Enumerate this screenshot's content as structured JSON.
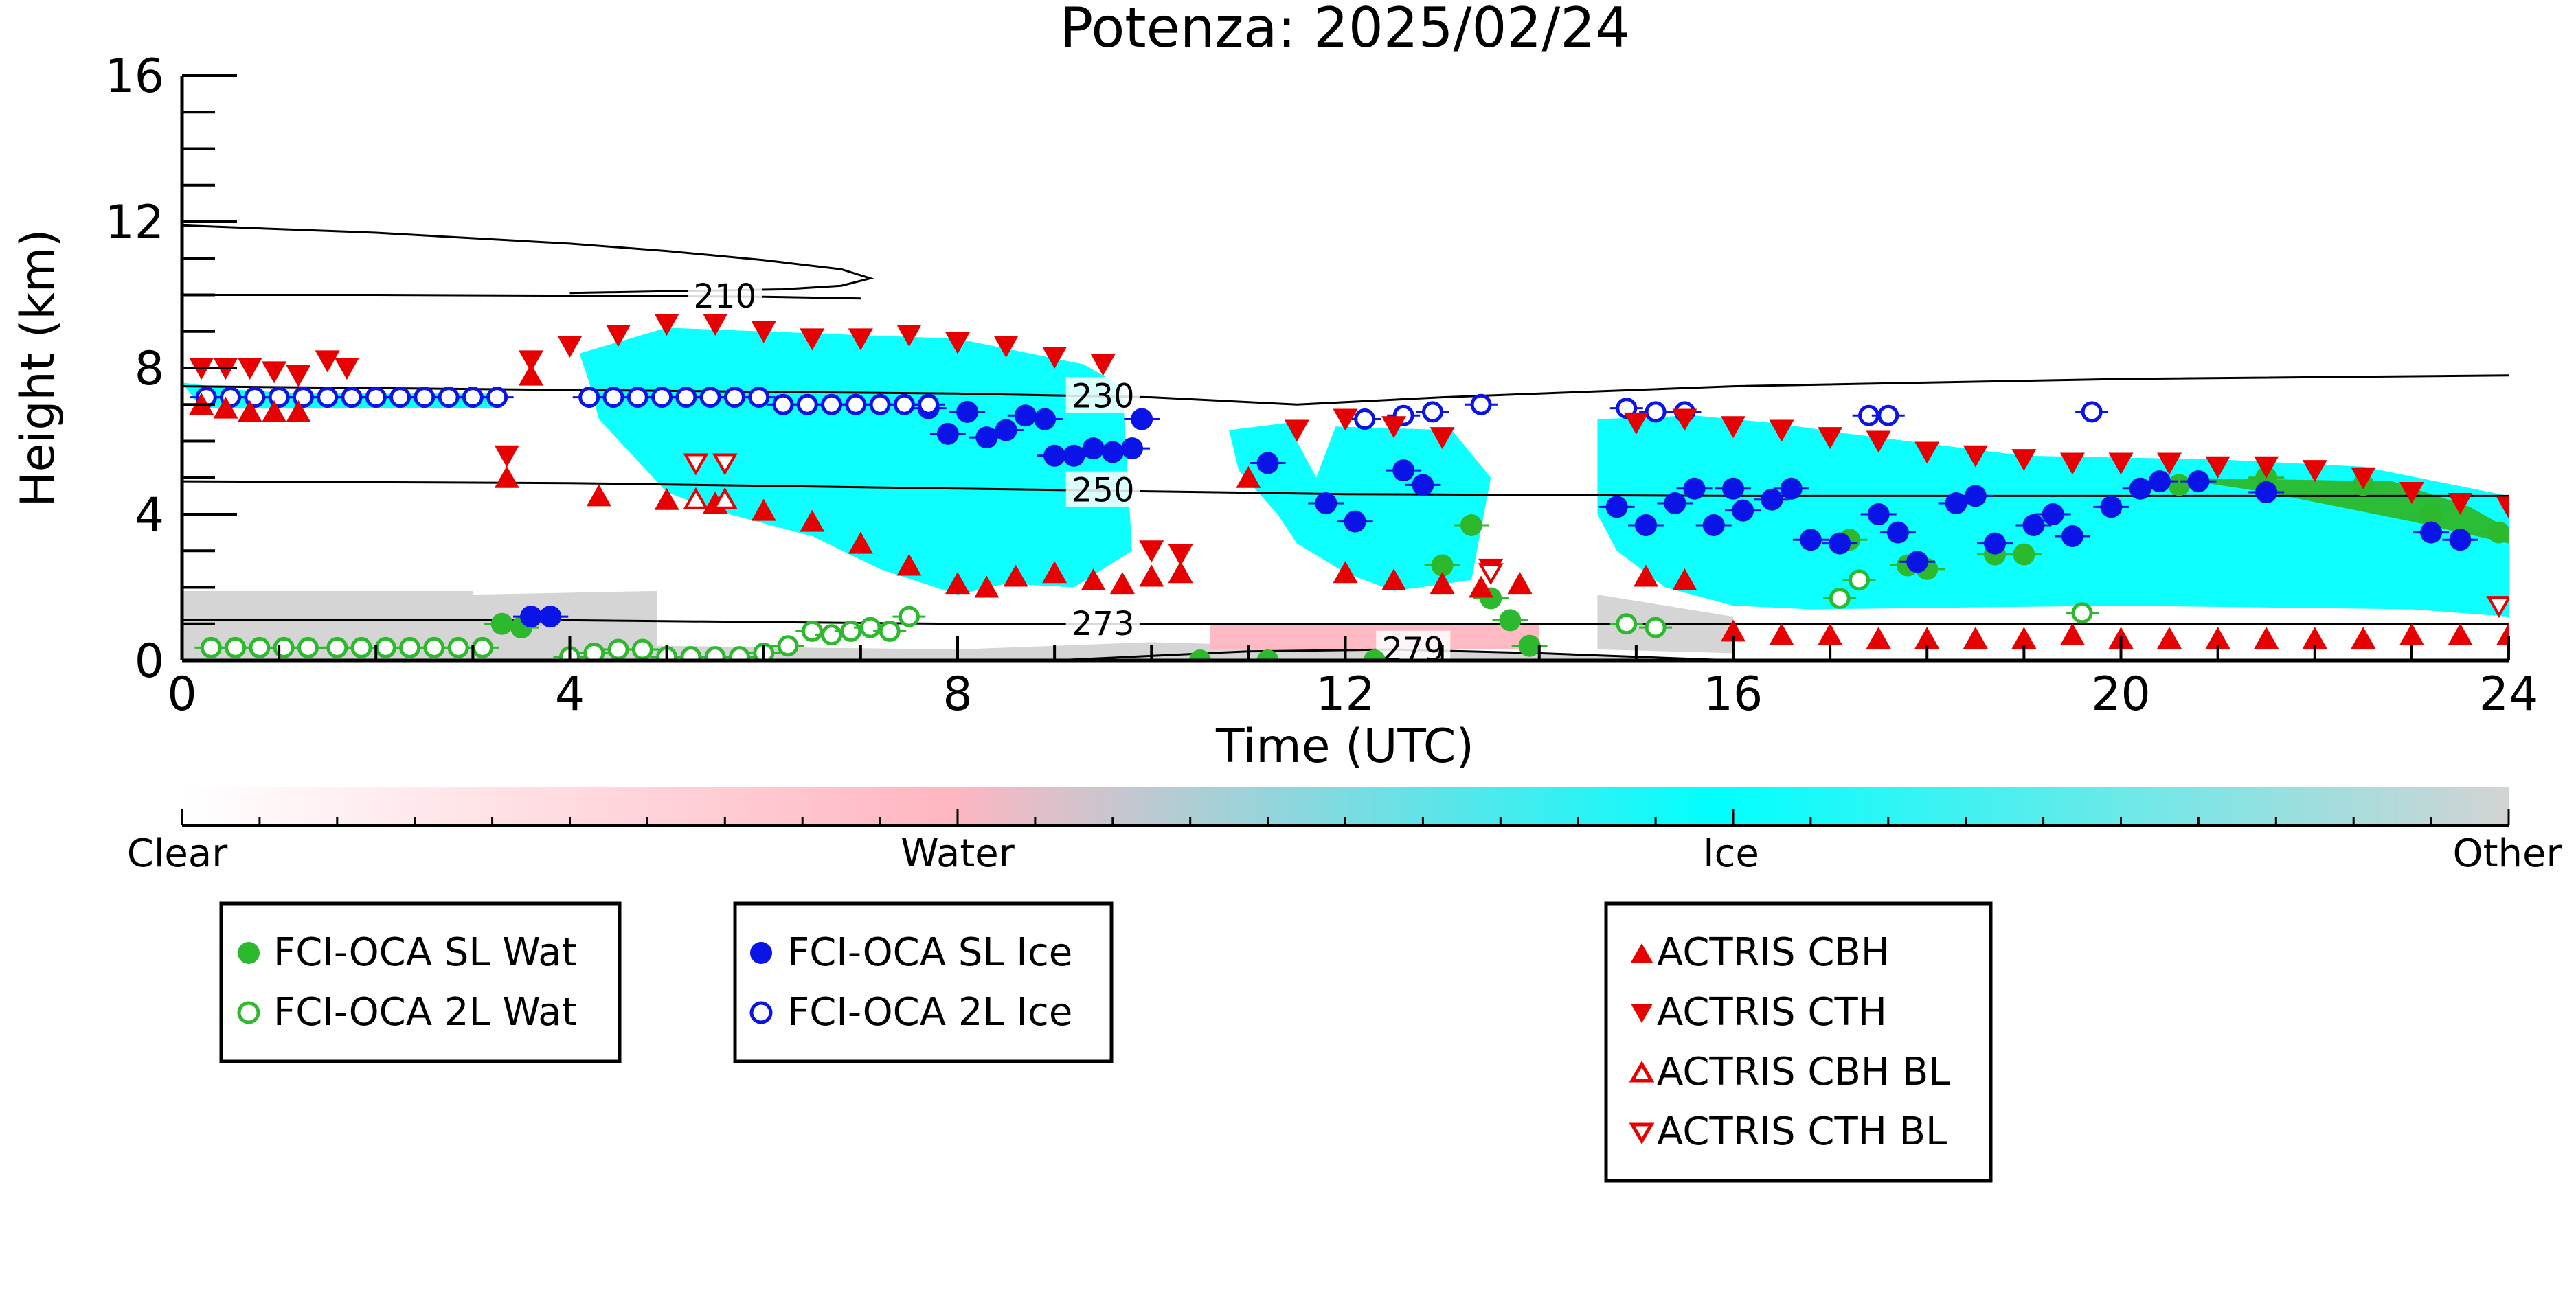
{
  "chart_data": {
    "type": "scatter",
    "title": "Potenza: 2025/02/24",
    "xlabel": "Time (UTC)",
    "ylabel": "Height (km)",
    "xlim": [
      0,
      24
    ],
    "ylim": [
      0,
      16
    ],
    "x_ticks": [
      0,
      4,
      8,
      12,
      16,
      20,
      24
    ],
    "y_ticks": [
      0,
      4,
      8,
      12,
      16
    ],
    "colorbar": {
      "labels": [
        "Clear",
        "Water",
        "Ice",
        "Other"
      ],
      "stops": [
        {
          "pos": 0.0,
          "color": "#ffffff"
        },
        {
          "pos": 0.33,
          "color": "#ffb6c1"
        },
        {
          "pos": 0.66,
          "color": "#00ffff"
        },
        {
          "pos": 1.0,
          "color": "#d3d3d3"
        }
      ]
    },
    "isotherms": [
      {
        "label": "210",
        "label_x": 5.6,
        "points": [
          [
            0,
            10.0
          ],
          [
            2,
            10.0
          ],
          [
            4,
            9.98
          ],
          [
            6,
            9.95
          ],
          [
            7,
            9.9
          ]
        ]
      },
      {
        "label": "230",
        "label_x": 9.5,
        "points": [
          [
            0,
            7.5
          ],
          [
            4,
            7.4
          ],
          [
            8,
            7.3
          ],
          [
            10,
            7.2
          ],
          [
            11.5,
            7.0
          ],
          [
            13,
            7.2
          ],
          [
            16,
            7.5
          ],
          [
            20,
            7.7
          ],
          [
            24,
            7.8
          ]
        ]
      },
      {
        "label": "250",
        "label_x": 9.5,
        "points": [
          [
            0,
            4.9
          ],
          [
            4,
            4.85
          ],
          [
            8,
            4.7
          ],
          [
            12,
            4.55
          ],
          [
            16,
            4.5
          ],
          [
            20,
            4.5
          ],
          [
            24,
            4.5
          ]
        ]
      },
      {
        "label": "273",
        "label_x": 9.5,
        "points": [
          [
            0,
            1.1
          ],
          [
            4,
            1.1
          ],
          [
            8,
            1.0
          ],
          [
            12,
            1.0
          ],
          [
            16,
            1.0
          ],
          [
            20,
            1.0
          ],
          [
            24,
            1.0
          ]
        ]
      },
      {
        "label": "279",
        "label_x": 12.7,
        "points": [
          [
            9,
            0.0
          ],
          [
            11,
            0.25
          ],
          [
            12.5,
            0.3
          ],
          [
            14,
            0.2
          ],
          [
            16,
            0.0
          ]
        ]
      }
    ],
    "tropopause_contour": [
      [
        0,
        11.9
      ],
      [
        2,
        11.7
      ],
      [
        4,
        11.4
      ],
      [
        5,
        11.2
      ],
      [
        6,
        10.95
      ],
      [
        6.8,
        10.7
      ],
      [
        7.1,
        10.45
      ],
      [
        6.8,
        10.25
      ],
      [
        6.2,
        10.15
      ],
      [
        5,
        10.1
      ],
      [
        4,
        10.05
      ]
    ],
    "series": [
      {
        "name": "FCI-OCA SL Wat",
        "marker": "circle-filled",
        "color": "#2db92d",
        "points": [
          [
            3.3,
            1.0
          ],
          [
            3.5,
            0.9
          ],
          [
            10.5,
            0.0
          ],
          [
            11.2,
            0.0
          ],
          [
            12.3,
            0.0
          ],
          [
            13.0,
            2.6
          ],
          [
            13.3,
            3.7
          ],
          [
            13.5,
            1.7
          ],
          [
            13.7,
            1.1
          ],
          [
            13.9,
            0.4
          ],
          [
            17.2,
            3.3
          ],
          [
            17.8,
            2.6
          ],
          [
            18.0,
            2.5
          ],
          [
            18.7,
            2.9
          ],
          [
            19.0,
            2.9
          ],
          [
            20.6,
            4.8
          ],
          [
            21.5,
            5.0
          ],
          [
            22.5,
            4.8
          ],
          [
            23.2,
            4.0
          ],
          [
            23.9,
            3.5
          ]
        ]
      },
      {
        "name": "FCI-OCA 2L Wat",
        "marker": "circle-open",
        "color": "#2db92d",
        "points": [
          [
            0.3,
            0.35
          ],
          [
            0.55,
            0.35
          ],
          [
            0.8,
            0.35
          ],
          [
            1.05,
            0.35
          ],
          [
            1.3,
            0.35
          ],
          [
            1.6,
            0.35
          ],
          [
            1.85,
            0.35
          ],
          [
            2.1,
            0.35
          ],
          [
            2.35,
            0.35
          ],
          [
            2.6,
            0.35
          ],
          [
            2.85,
            0.35
          ],
          [
            3.1,
            0.35
          ],
          [
            4.0,
            0.1
          ],
          [
            4.25,
            0.2
          ],
          [
            4.5,
            0.3
          ],
          [
            4.75,
            0.3
          ],
          [
            5.0,
            0.1
          ],
          [
            5.25,
            0.1
          ],
          [
            5.5,
            0.1
          ],
          [
            5.75,
            0.1
          ],
          [
            6.0,
            0.2
          ],
          [
            6.25,
            0.4
          ],
          [
            6.5,
            0.8
          ],
          [
            6.7,
            0.7
          ],
          [
            6.9,
            0.8
          ],
          [
            7.1,
            0.9
          ],
          [
            7.3,
            0.8
          ],
          [
            7.5,
            1.2
          ],
          [
            17.1,
            1.7
          ],
          [
            17.3,
            2.2
          ],
          [
            14.9,
            1.0
          ],
          [
            15.2,
            0.9
          ],
          [
            19.6,
            1.3
          ]
        ]
      },
      {
        "name": "FCI-OCA SL Ice",
        "marker": "circle-filled",
        "color": "#0a14e6",
        "points": [
          [
            3.6,
            1.2
          ],
          [
            3.8,
            1.2
          ],
          [
            7.7,
            6.9
          ],
          [
            7.9,
            6.2
          ],
          [
            8.1,
            6.8
          ],
          [
            8.3,
            6.1
          ],
          [
            8.5,
            6.3
          ],
          [
            8.7,
            6.7
          ],
          [
            8.9,
            6.6
          ],
          [
            9.0,
            5.6
          ],
          [
            9.2,
            5.6
          ],
          [
            9.4,
            5.8
          ],
          [
            9.6,
            5.7
          ],
          [
            9.8,
            5.8
          ],
          [
            9.9,
            6.6
          ],
          [
            11.2,
            5.4
          ],
          [
            11.8,
            4.3
          ],
          [
            12.1,
            3.8
          ],
          [
            12.6,
            5.2
          ],
          [
            12.8,
            4.8
          ],
          [
            14.8,
            4.2
          ],
          [
            15.1,
            3.7
          ],
          [
            15.4,
            4.3
          ],
          [
            15.6,
            4.7
          ],
          [
            15.8,
            3.7
          ],
          [
            16.0,
            4.7
          ],
          [
            16.1,
            4.1
          ],
          [
            16.4,
            4.4
          ],
          [
            16.6,
            4.7
          ],
          [
            16.8,
            3.3
          ],
          [
            17.1,
            3.2
          ],
          [
            17.5,
            4.0
          ],
          [
            17.7,
            3.5
          ],
          [
            17.9,
            2.7
          ],
          [
            18.3,
            4.3
          ],
          [
            18.5,
            4.5
          ],
          [
            18.7,
            3.2
          ],
          [
            19.1,
            3.7
          ],
          [
            19.3,
            4.0
          ],
          [
            19.5,
            3.4
          ],
          [
            19.9,
            4.2
          ],
          [
            20.2,
            4.7
          ],
          [
            20.4,
            4.9
          ],
          [
            20.8,
            4.9
          ],
          [
            21.5,
            4.6
          ],
          [
            23.2,
            3.5
          ],
          [
            23.5,
            3.3
          ]
        ]
      },
      {
        "name": "FCI-OCA 2L Ice",
        "marker": "circle-open",
        "color": "#0a14e6",
        "points": [
          [
            0.25,
            7.2
          ],
          [
            0.5,
            7.2
          ],
          [
            0.75,
            7.2
          ],
          [
            1.0,
            7.2
          ],
          [
            1.25,
            7.2
          ],
          [
            1.5,
            7.2
          ],
          [
            1.75,
            7.2
          ],
          [
            2.0,
            7.2
          ],
          [
            2.25,
            7.2
          ],
          [
            2.5,
            7.2
          ],
          [
            2.75,
            7.2
          ],
          [
            3.0,
            7.2
          ],
          [
            3.25,
            7.2
          ],
          [
            4.2,
            7.2
          ],
          [
            4.45,
            7.2
          ],
          [
            4.7,
            7.2
          ],
          [
            4.95,
            7.2
          ],
          [
            5.2,
            7.2
          ],
          [
            5.45,
            7.2
          ],
          [
            5.7,
            7.2
          ],
          [
            5.95,
            7.2
          ],
          [
            6.2,
            7.0
          ],
          [
            6.45,
            7.0
          ],
          [
            6.7,
            7.0
          ],
          [
            6.95,
            7.0
          ],
          [
            7.2,
            7.0
          ],
          [
            7.45,
            7.0
          ],
          [
            7.7,
            7.0
          ],
          [
            12.2,
            6.6
          ],
          [
            12.6,
            6.7
          ],
          [
            12.9,
            6.8
          ],
          [
            13.4,
            7.0
          ],
          [
            14.9,
            6.9
          ],
          [
            15.2,
            6.8
          ],
          [
            15.5,
            6.8
          ],
          [
            17.4,
            6.7
          ],
          [
            17.6,
            6.7
          ],
          [
            19.7,
            6.8
          ]
        ]
      },
      {
        "name": "ACTRIS CBH",
        "marker": "triangle-up-filled",
        "color": "#e60000",
        "points": [
          [
            0.2,
            7.0
          ],
          [
            0.45,
            6.9
          ],
          [
            0.7,
            6.8
          ],
          [
            0.95,
            6.8
          ],
          [
            1.2,
            6.8
          ],
          [
            3.35,
            5.0
          ],
          [
            3.6,
            7.8
          ],
          [
            4.3,
            4.5
          ],
          [
            5.0,
            4.4
          ],
          [
            5.5,
            4.3
          ],
          [
            6.0,
            4.1
          ],
          [
            6.5,
            3.8
          ],
          [
            7.0,
            3.2
          ],
          [
            7.5,
            2.6
          ],
          [
            8.0,
            2.1
          ],
          [
            8.3,
            2.0
          ],
          [
            8.6,
            2.3
          ],
          [
            9.0,
            2.4
          ],
          [
            9.4,
            2.2
          ],
          [
            9.7,
            2.1
          ],
          [
            10.0,
            2.3
          ],
          [
            10.3,
            2.4
          ],
          [
            11.0,
            5.0
          ],
          [
            12.0,
            2.4
          ],
          [
            12.5,
            2.2
          ],
          [
            13.0,
            2.1
          ],
          [
            13.4,
            2.0
          ],
          [
            13.8,
            2.1
          ],
          [
            15.1,
            2.3
          ],
          [
            15.5,
            2.2
          ],
          [
            16.0,
            0.8
          ],
          [
            16.5,
            0.7
          ],
          [
            17.0,
            0.7
          ],
          [
            17.5,
            0.6
          ],
          [
            18.0,
            0.6
          ],
          [
            18.5,
            0.6
          ],
          [
            19.0,
            0.6
          ],
          [
            19.5,
            0.7
          ],
          [
            20.0,
            0.6
          ],
          [
            20.5,
            0.6
          ],
          [
            21.0,
            0.6
          ],
          [
            21.5,
            0.6
          ],
          [
            22.0,
            0.6
          ],
          [
            22.5,
            0.6
          ],
          [
            23.0,
            0.7
          ],
          [
            23.5,
            0.7
          ],
          [
            24.0,
            0.7
          ]
        ]
      },
      {
        "name": "ACTRIS CTH",
        "marker": "triangle-down-filled",
        "color": "#e60000",
        "points": [
          [
            0.2,
            8.0
          ],
          [
            0.45,
            8.0
          ],
          [
            0.7,
            8.0
          ],
          [
            0.95,
            7.9
          ],
          [
            1.2,
            7.8
          ],
          [
            1.5,
            8.2
          ],
          [
            1.7,
            8.0
          ],
          [
            3.35,
            5.6
          ],
          [
            3.6,
            8.2
          ],
          [
            4.0,
            8.6
          ],
          [
            4.5,
            8.9
          ],
          [
            5.0,
            9.2
          ],
          [
            5.5,
            9.2
          ],
          [
            6.0,
            9.0
          ],
          [
            6.5,
            8.8
          ],
          [
            7.0,
            8.8
          ],
          [
            7.5,
            8.9
          ],
          [
            8.0,
            8.7
          ],
          [
            8.5,
            8.6
          ],
          [
            9.0,
            8.3
          ],
          [
            9.5,
            8.1
          ],
          [
            10.0,
            3.0
          ],
          [
            10.3,
            2.9
          ],
          [
            11.5,
            6.3
          ],
          [
            12.0,
            6.6
          ],
          [
            12.5,
            6.4
          ],
          [
            13.0,
            6.1
          ],
          [
            13.5,
            2.5
          ],
          [
            15.0,
            6.5
          ],
          [
            15.5,
            6.6
          ],
          [
            16.0,
            6.4
          ],
          [
            16.5,
            6.3
          ],
          [
            17.0,
            6.1
          ],
          [
            17.5,
            6.0
          ],
          [
            18.0,
            5.7
          ],
          [
            18.5,
            5.6
          ],
          [
            19.0,
            5.5
          ],
          [
            19.5,
            5.4
          ],
          [
            20.0,
            5.4
          ],
          [
            20.5,
            5.4
          ],
          [
            21.0,
            5.3
          ],
          [
            21.5,
            5.3
          ],
          [
            22.0,
            5.2
          ],
          [
            22.5,
            5.0
          ],
          [
            23.0,
            4.6
          ],
          [
            23.5,
            4.3
          ],
          [
            24.0,
            4.2
          ]
        ]
      },
      {
        "name": "ACTRIS CBH BL",
        "marker": "triangle-up-open",
        "color": "#e60000",
        "points": [
          [
            5.3,
            4.4
          ],
          [
            5.6,
            4.4
          ]
        ]
      },
      {
        "name": "ACTRIS CTH BL",
        "marker": "triangle-down-open",
        "color": "#e60000",
        "points": [
          [
            5.3,
            5.4
          ],
          [
            5.6,
            5.4
          ],
          [
            13.5,
            2.4
          ],
          [
            23.9,
            1.5
          ]
        ]
      }
    ]
  }
}
